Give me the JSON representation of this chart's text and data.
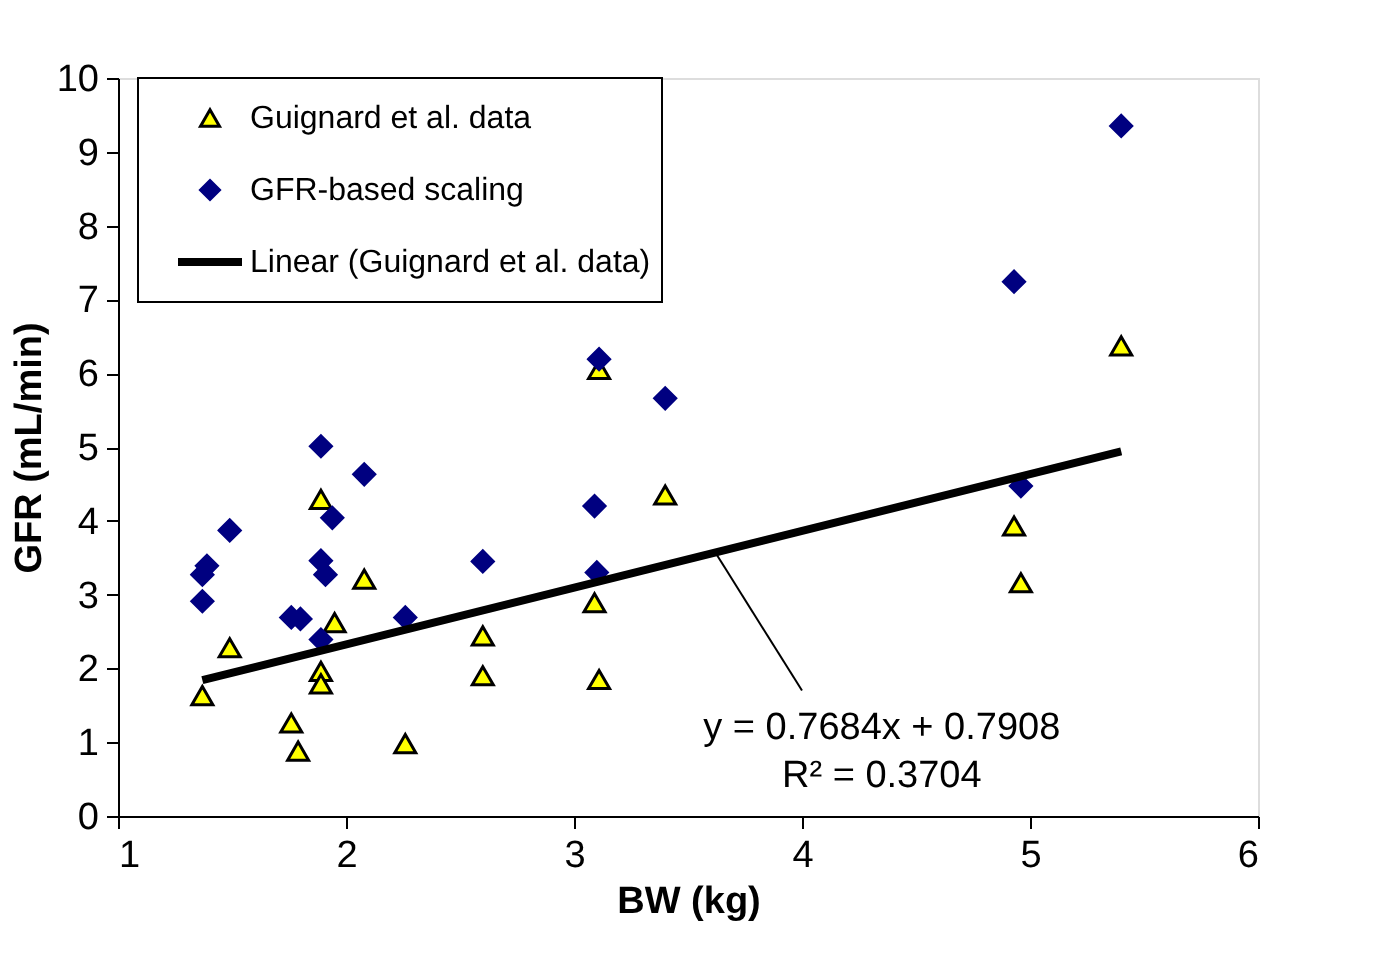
{
  "chart_data": {
    "type": "scatter",
    "xlabel": "BW (kg)",
    "ylabel": "GFR (mL/min)",
    "xlim": [
      1,
      6
    ],
    "xticks": [
      1,
      2,
      3,
      4,
      5,
      6
    ],
    "ylim": [
      0,
      10
    ],
    "yticks": [
      0,
      1,
      2,
      3,
      4,
      5,
      6,
      7,
      8,
      9,
      10
    ],
    "grid": false,
    "legend": "top left",
    "series": [
      {
        "name": "Guignard et al. data",
        "color": "#ffff00",
        "marker": "triangle",
        "x": [
          1.89,
          2.08,
          1.95,
          1.49,
          2.6,
          2.6,
          1.89,
          1.89,
          1.37,
          1.76,
          1.79,
          2.26,
          3.11,
          3.4,
          3.09,
          3.11,
          5.4,
          4.93,
          4.96
        ],
        "values": [
          4.29,
          3.21,
          2.62,
          2.28,
          2.44,
          1.9,
          1.96,
          1.79,
          1.63,
          1.26,
          0.88,
          0.98,
          6.05,
          4.35,
          2.89,
          1.85,
          6.37,
          3.93,
          3.16
        ]
      },
      {
        "name": "GFR-based scaling",
        "color": "#000080",
        "marker": "diamond",
        "x": [
          1.89,
          2.08,
          1.94,
          1.49,
          1.39,
          1.37,
          1.89,
          1.91,
          2.6,
          1.37,
          1.76,
          1.8,
          2.26,
          1.89,
          3.11,
          3.4,
          3.09,
          3.1,
          5.4,
          4.93,
          4.96
        ],
        "values": [
          5.01,
          4.63,
          4.04,
          3.87,
          3.39,
          3.27,
          3.46,
          3.27,
          3.45,
          2.91,
          2.69,
          2.67,
          2.69,
          2.39,
          6.19,
          5.66,
          4.2,
          3.3,
          9.35,
          7.24,
          4.47
        ]
      },
      {
        "name": "Linear (Guignard et al. data)",
        "type": "line",
        "color": "#000000",
        "marker": "none",
        "line_style": "solid",
        "x": [
          1.37,
          5.4
        ],
        "values": [
          1.84,
          4.94
        ]
      }
    ],
    "annotations": [
      {
        "text": "y = 0.7684x + 0.7908",
        "x": 3.62,
        "y": 3.57
      },
      "R² = 0.3704"
    ]
  }
}
